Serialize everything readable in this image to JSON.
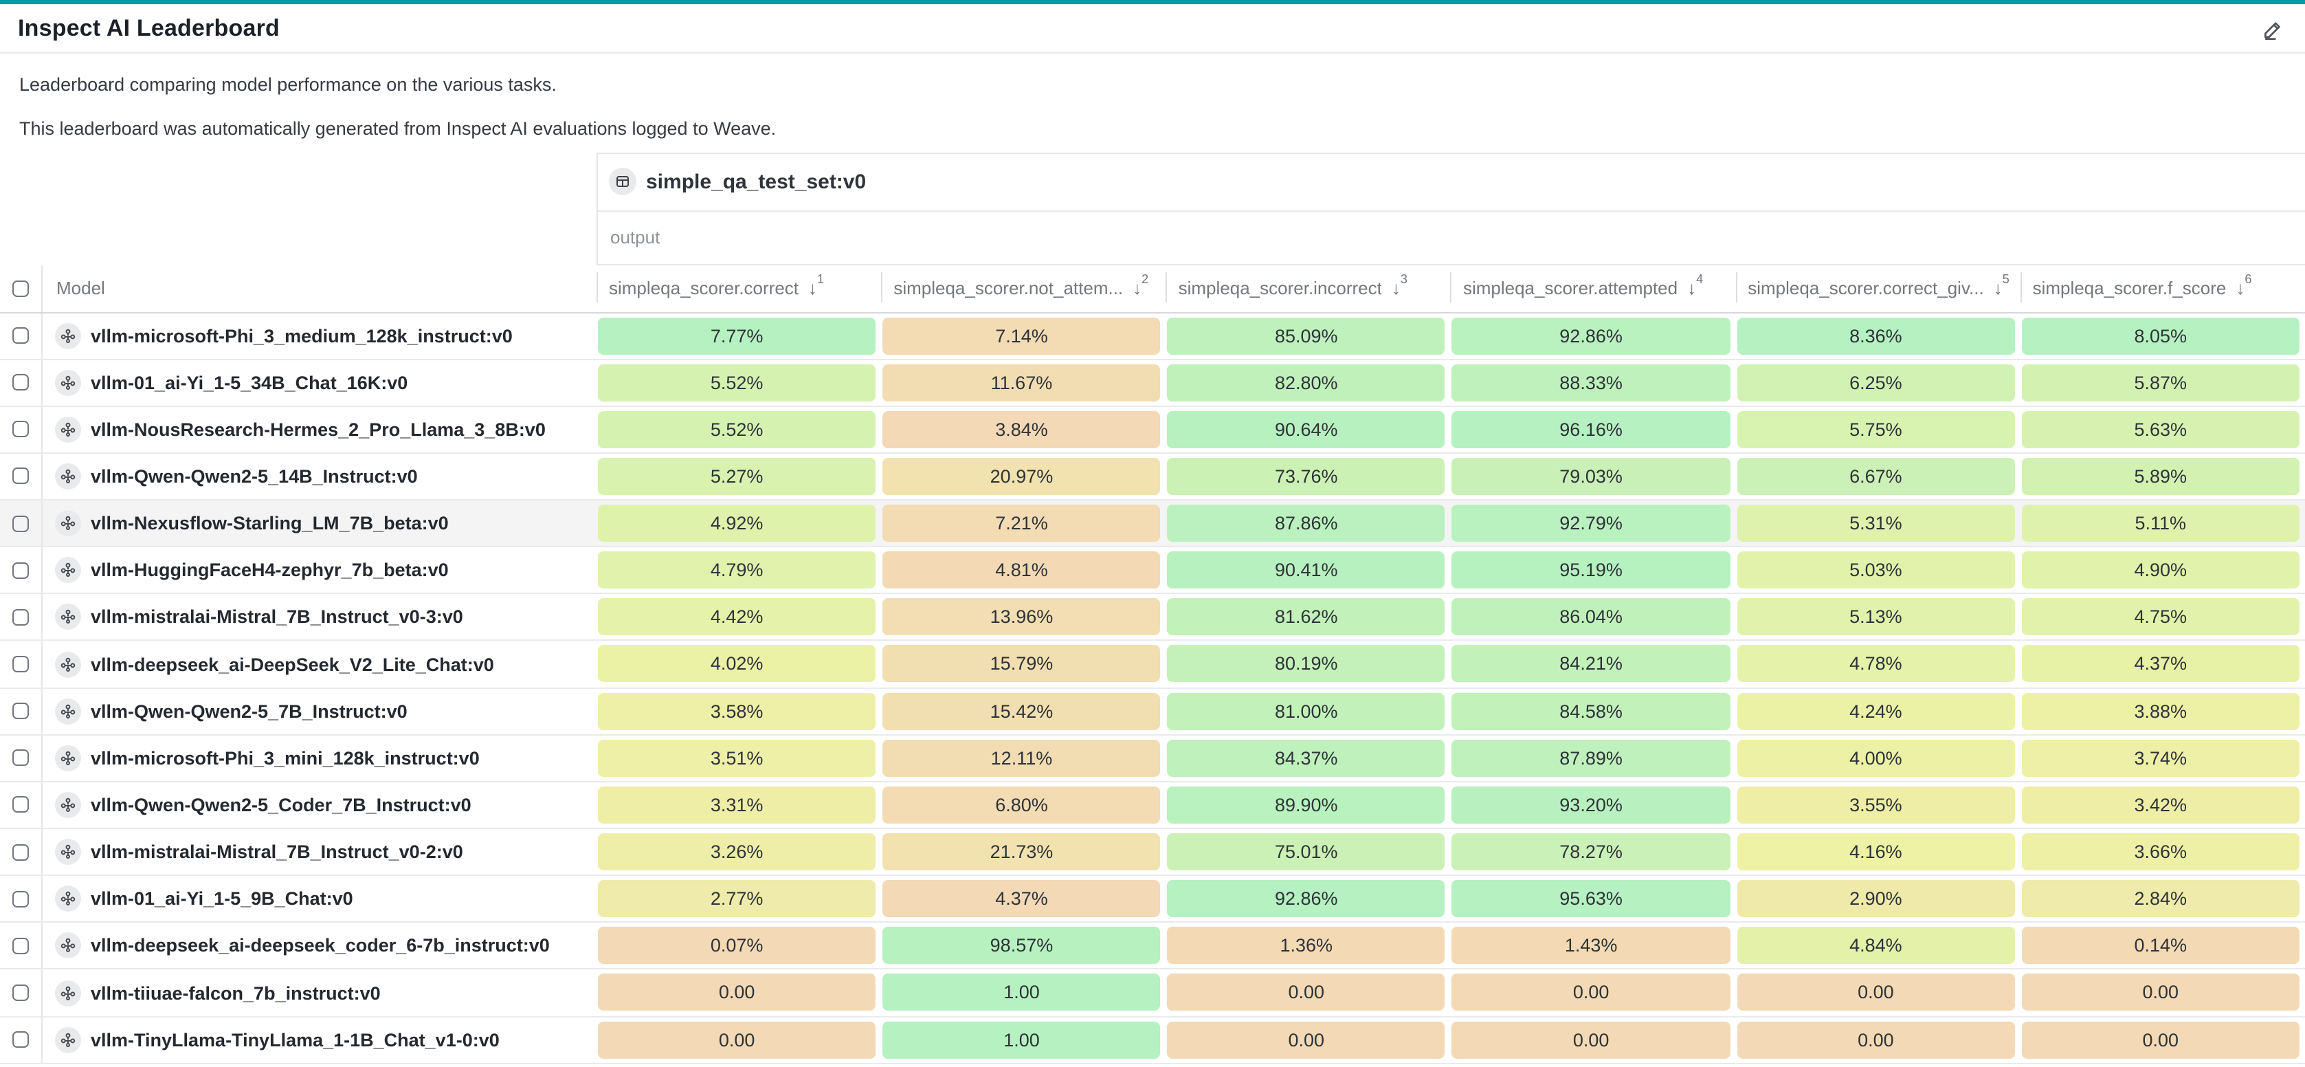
{
  "page": {
    "title": "Inspect AI Leaderboard",
    "description_line1": "Leaderboard comparing model performance on the various tasks.",
    "description_line2": "This leaderboard was automatically generated from Inspect AI evaluations logged to Weave."
  },
  "colors": {
    "accent_teal": "#009ca6",
    "scale_low": "#f3d9b5",
    "scale_mid": "#edf2a5",
    "scale_high": "#b5f1c1",
    "row_highlight": "#f4f4f5"
  },
  "table": {
    "group_header": "simple_qa_test_set:v0",
    "subgroup_header": "output",
    "model_column_label": "Model",
    "columns": [
      {
        "label": "simpleqa_scorer.correct",
        "sort_icon": "arrow-down",
        "sort_rank": "1"
      },
      {
        "label": "simpleqa_scorer.not_attem...",
        "sort_icon": "arrow-down",
        "sort_rank": "2"
      },
      {
        "label": "simpleqa_scorer.incorrect",
        "sort_icon": "arrow-down",
        "sort_rank": "3"
      },
      {
        "label": "simpleqa_scorer.attempted",
        "sort_icon": "arrow-down",
        "sort_rank": "4"
      },
      {
        "label": "simpleqa_scorer.correct_giv...",
        "sort_icon": "arrow-down",
        "sort_rank": "5"
      },
      {
        "label": "simpleqa_scorer.f_score",
        "sort_icon": "arrow-down",
        "sort_rank": "6"
      }
    ],
    "rows": [
      {
        "model": "vllm-microsoft-Phi_3_medium_128k_instruct:v0",
        "highlighted": false,
        "values": [
          "7.77%",
          "7.14%",
          "85.09%",
          "92.86%",
          "8.36%",
          "8.05%"
        ]
      },
      {
        "model": "vllm-01_ai-Yi_1-5_34B_Chat_16K:v0",
        "highlighted": false,
        "values": [
          "5.52%",
          "11.67%",
          "82.80%",
          "88.33%",
          "6.25%",
          "5.87%"
        ]
      },
      {
        "model": "vllm-NousResearch-Hermes_2_Pro_Llama_3_8B:v0",
        "highlighted": false,
        "values": [
          "5.52%",
          "3.84%",
          "90.64%",
          "96.16%",
          "5.75%",
          "5.63%"
        ]
      },
      {
        "model": "vllm-Qwen-Qwen2-5_14B_Instruct:v0",
        "highlighted": false,
        "values": [
          "5.27%",
          "20.97%",
          "73.76%",
          "79.03%",
          "6.67%",
          "5.89%"
        ]
      },
      {
        "model": "vllm-Nexusflow-Starling_LM_7B_beta:v0",
        "highlighted": true,
        "values": [
          "4.92%",
          "7.21%",
          "87.86%",
          "92.79%",
          "5.31%",
          "5.11%"
        ]
      },
      {
        "model": "vllm-HuggingFaceH4-zephyr_7b_beta:v0",
        "highlighted": false,
        "values": [
          "4.79%",
          "4.81%",
          "90.41%",
          "95.19%",
          "5.03%",
          "4.90%"
        ]
      },
      {
        "model": "vllm-mistralai-Mistral_7B_Instruct_v0-3:v0",
        "highlighted": false,
        "values": [
          "4.42%",
          "13.96%",
          "81.62%",
          "86.04%",
          "5.13%",
          "4.75%"
        ]
      },
      {
        "model": "vllm-deepseek_ai-DeepSeek_V2_Lite_Chat:v0",
        "highlighted": false,
        "values": [
          "4.02%",
          "15.79%",
          "80.19%",
          "84.21%",
          "4.78%",
          "4.37%"
        ]
      },
      {
        "model": "vllm-Qwen-Qwen2-5_7B_Instruct:v0",
        "highlighted": false,
        "values": [
          "3.58%",
          "15.42%",
          "81.00%",
          "84.58%",
          "4.24%",
          "3.88%"
        ]
      },
      {
        "model": "vllm-microsoft-Phi_3_mini_128k_instruct:v0",
        "highlighted": false,
        "values": [
          "3.51%",
          "12.11%",
          "84.37%",
          "87.89%",
          "4.00%",
          "3.74%"
        ]
      },
      {
        "model": "vllm-Qwen-Qwen2-5_Coder_7B_Instruct:v0",
        "highlighted": false,
        "values": [
          "3.31%",
          "6.80%",
          "89.90%",
          "93.20%",
          "3.55%",
          "3.42%"
        ]
      },
      {
        "model": "vllm-mistralai-Mistral_7B_Instruct_v0-2:v0",
        "highlighted": false,
        "values": [
          "3.26%",
          "21.73%",
          "75.01%",
          "78.27%",
          "4.16%",
          "3.66%"
        ]
      },
      {
        "model": "vllm-01_ai-Yi_1-5_9B_Chat:v0",
        "highlighted": false,
        "values": [
          "2.77%",
          "4.37%",
          "92.86%",
          "95.63%",
          "2.90%",
          "2.84%"
        ]
      },
      {
        "model": "vllm-deepseek_ai-deepseek_coder_6-7b_instruct:v0",
        "highlighted": false,
        "values": [
          "0.07%",
          "98.57%",
          "1.36%",
          "1.43%",
          "4.84%",
          "0.14%"
        ]
      },
      {
        "model": "vllm-tiiuae-falcon_7b_instruct:v0",
        "highlighted": false,
        "values": [
          "0.00",
          "1.00",
          "0.00",
          "0.00",
          "0.00",
          "0.00"
        ]
      },
      {
        "model": "vllm-TinyLlama-TinyLlama_1-1B_Chat_v1-0:v0",
        "highlighted": false,
        "values": [
          "0.00",
          "1.00",
          "0.00",
          "0.00",
          "0.00",
          "0.00"
        ]
      }
    ]
  }
}
